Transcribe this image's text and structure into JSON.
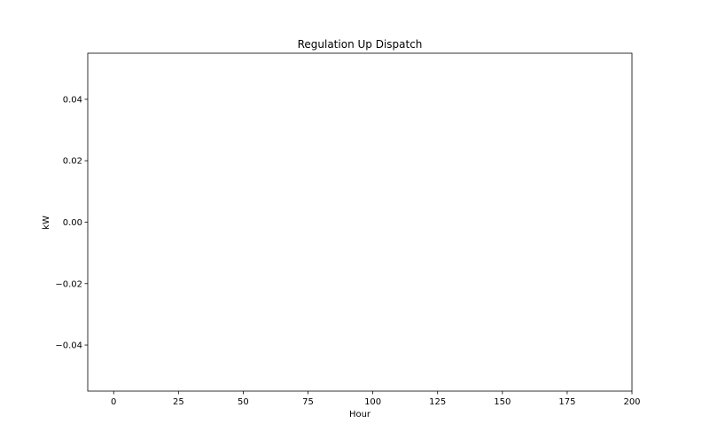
{
  "chart_data": {
    "type": "line",
    "title": "Regulation Up Dispatch",
    "xlabel": "Hour",
    "ylabel": "kW",
    "xlim": [
      -10,
      200
    ],
    "ylim": [
      -0.055,
      0.055
    ],
    "xticks": [
      0,
      25,
      50,
      75,
      100,
      125,
      150,
      175,
      200
    ],
    "xtick_labels": [
      "0",
      "25",
      "50",
      "75",
      "100",
      "125",
      "150",
      "175",
      "200"
    ],
    "yticks": [
      -0.04,
      -0.02,
      0.0,
      0.02,
      0.04
    ],
    "ytick_labels": [
      "−0.04",
      "−0.02",
      "0.00",
      "0.02",
      "0.04"
    ],
    "grid": false,
    "series": []
  }
}
